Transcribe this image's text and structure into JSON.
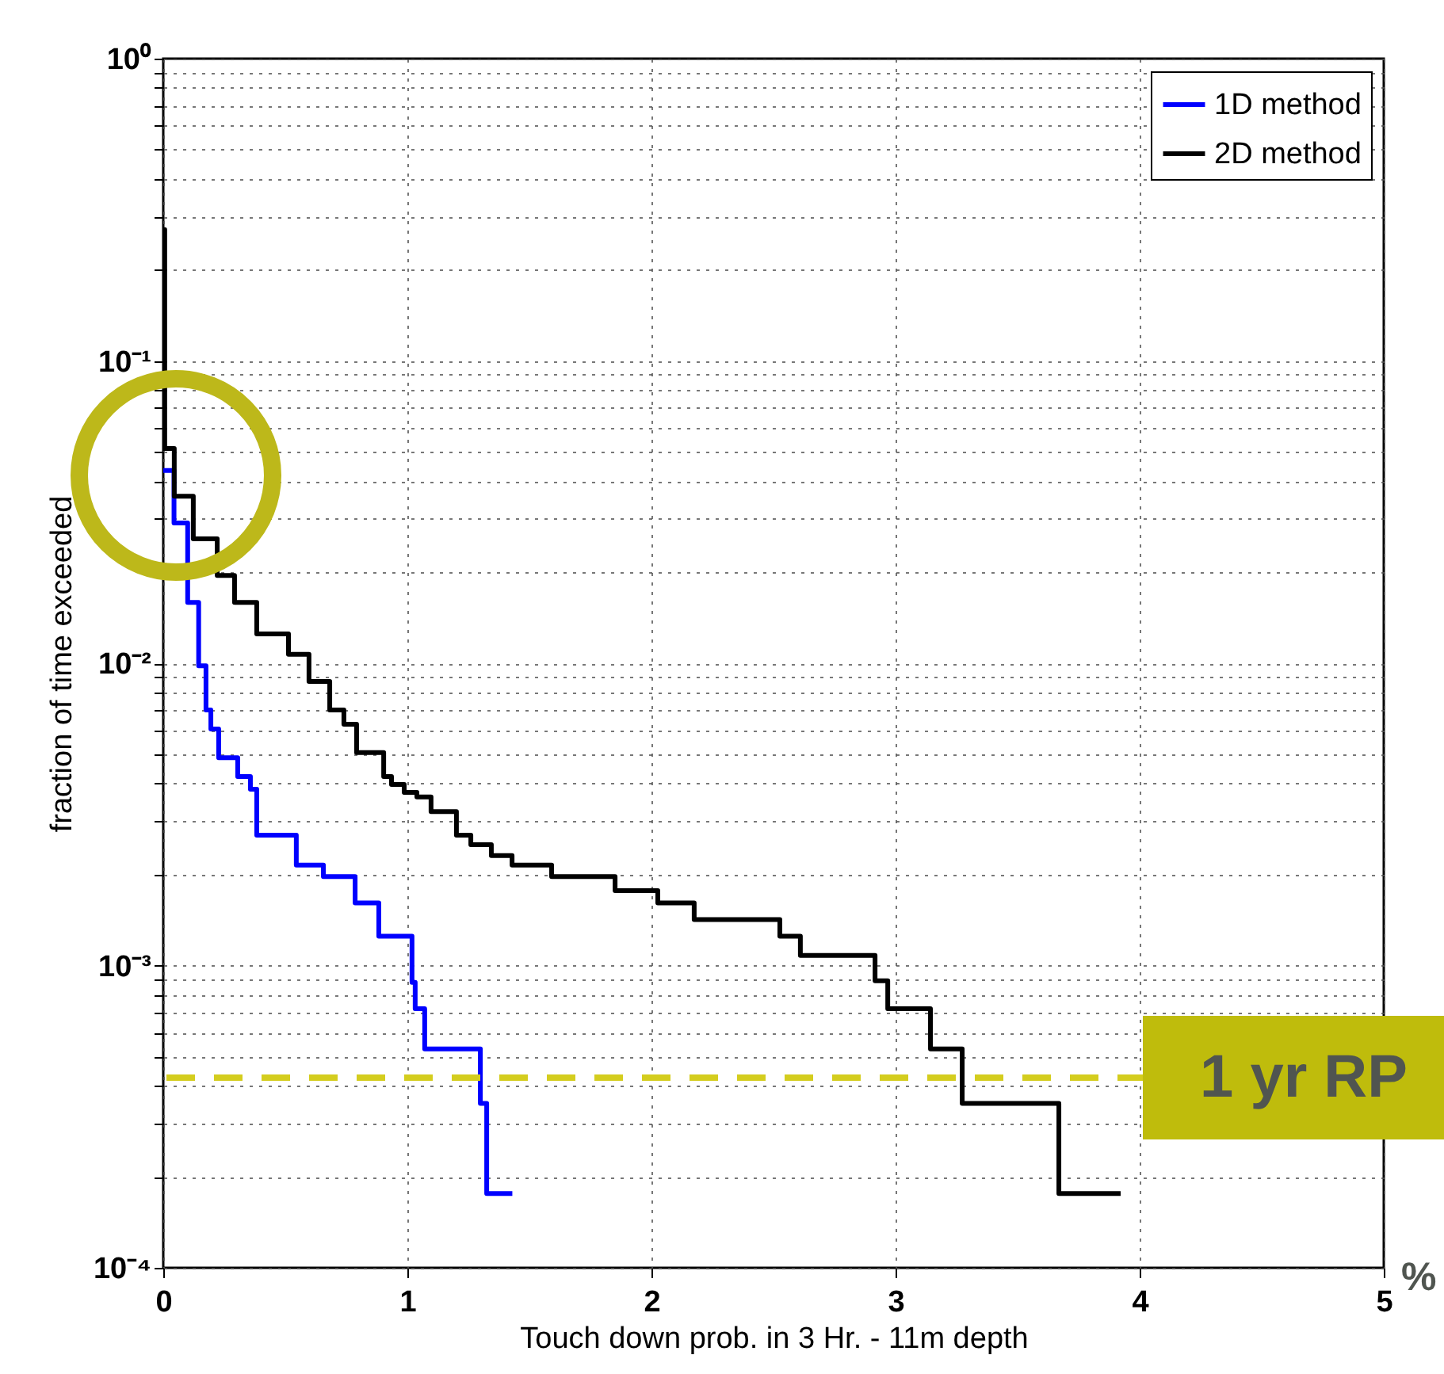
{
  "chart_data": {
    "type": "step",
    "xlabel": "Touch down prob. in 3 Hr. - 11m depth",
    "ylabel": "fraction of time exceeded",
    "series": [
      {
        "name": "1D method",
        "color": "#0000ff",
        "x": [
          0,
          0.044,
          0.1,
          0.145,
          0.175,
          0.195,
          0.227,
          0.305,
          0.357,
          0.383,
          0.545,
          0.656,
          0.786,
          0.883,
          1.019,
          1.032,
          1.071,
          1.299,
          1.325,
          1.43
        ],
        "values": [
          0.0434,
          0.0291,
          0.0159,
          0.0098,
          0.007,
          0.00606,
          0.00487,
          0.00422,
          0.00383,
          0.0027,
          0.00215,
          0.00197,
          0.00161,
          0.00125,
          0.00088,
          0.00072,
          0.00053,
          0.00035,
          0.000176,
          0.000176
        ]
      },
      {
        "name": "2D method",
        "color": "#000000",
        "x": [
          0,
          0.006,
          0.045,
          0.123,
          0.221,
          0.292,
          0.383,
          0.513,
          0.597,
          0.682,
          0.74,
          0.792,
          0.903,
          0.935,
          0.987,
          1.039,
          1.097,
          1.201,
          1.26,
          1.344,
          1.429,
          1.591,
          1.851,
          2.026,
          2.175,
          2.526,
          2.61,
          2.916,
          2.968,
          3.143,
          3.273,
          3.669,
          3.922
        ],
        "values": [
          0.272,
          0.0513,
          0.0357,
          0.0258,
          0.0195,
          0.0159,
          0.0125,
          0.0107,
          0.0087,
          0.007,
          0.00628,
          0.00506,
          0.00422,
          0.00397,
          0.00374,
          0.00361,
          0.00323,
          0.0027,
          0.00251,
          0.00231,
          0.00215,
          0.00197,
          0.00177,
          0.00161,
          0.00142,
          0.00125,
          0.00108,
          0.00089,
          0.00072,
          0.00053,
          0.00035,
          0.000176,
          0.000176
        ]
      }
    ],
    "xlim": [
      0,
      5
    ],
    "xticks": [
      0,
      1,
      2,
      3,
      4,
      5
    ],
    "log": true,
    "ylim": [
      0.0001,
      1
    ],
    "yticks": [
      {
        "value": 0.0001,
        "label": "10⁻⁴"
      },
      {
        "value": 0.0002,
        "label": null
      },
      {
        "value": 0.0003,
        "label": null
      },
      {
        "value": 0.0004,
        "label": null
      },
      {
        "value": 0.0005,
        "label": null
      },
      {
        "value": 0.0006,
        "label": null
      },
      {
        "value": 0.0007,
        "label": null
      },
      {
        "value": 0.0008,
        "label": null
      },
      {
        "value": 0.0009,
        "label": null
      },
      {
        "value": 0.001,
        "label": "10⁻³"
      },
      {
        "value": 0.002,
        "label": null
      },
      {
        "value": 0.003,
        "label": null
      },
      {
        "value": 0.004,
        "label": null
      },
      {
        "value": 0.005,
        "label": null
      },
      {
        "value": 0.006,
        "label": null
      },
      {
        "value": 0.007,
        "label": null
      },
      {
        "value": 0.008,
        "label": null
      },
      {
        "value": 0.009,
        "label": null
      },
      {
        "value": 0.01,
        "label": "10⁻²"
      },
      {
        "value": 0.02,
        "label": null
      },
      {
        "value": 0.03,
        "label": null
      },
      {
        "value": 0.04,
        "label": null
      },
      {
        "value": 0.05,
        "label": null
      },
      {
        "value": 0.06,
        "label": null
      },
      {
        "value": 0.07,
        "label": null
      },
      {
        "value": 0.08,
        "label": null
      },
      {
        "value": 0.09,
        "label": null
      },
      {
        "value": 0.1,
        "label": "10⁻¹"
      },
      {
        "value": 0.2,
        "label": null
      },
      {
        "value": 0.3,
        "label": null
      },
      {
        "value": 0.4,
        "label": null
      },
      {
        "value": 0.5,
        "label": null
      },
      {
        "value": 0.6,
        "label": null
      },
      {
        "value": 0.7,
        "label": null
      },
      {
        "value": 0.8,
        "label": null
      },
      {
        "value": 0.9,
        "label": null
      },
      {
        "value": 1,
        "label": "10⁰"
      }
    ],
    "grid": true,
    "legend": "top right",
    "line_style": "solid",
    "ref_lines": [
      {
        "axis": "y",
        "value": 0.000426,
        "label": "1 yr RP",
        "color": "#d4cd1e",
        "line_style": "dashed"
      }
    ],
    "annotations": [
      "%"
    ]
  }
}
